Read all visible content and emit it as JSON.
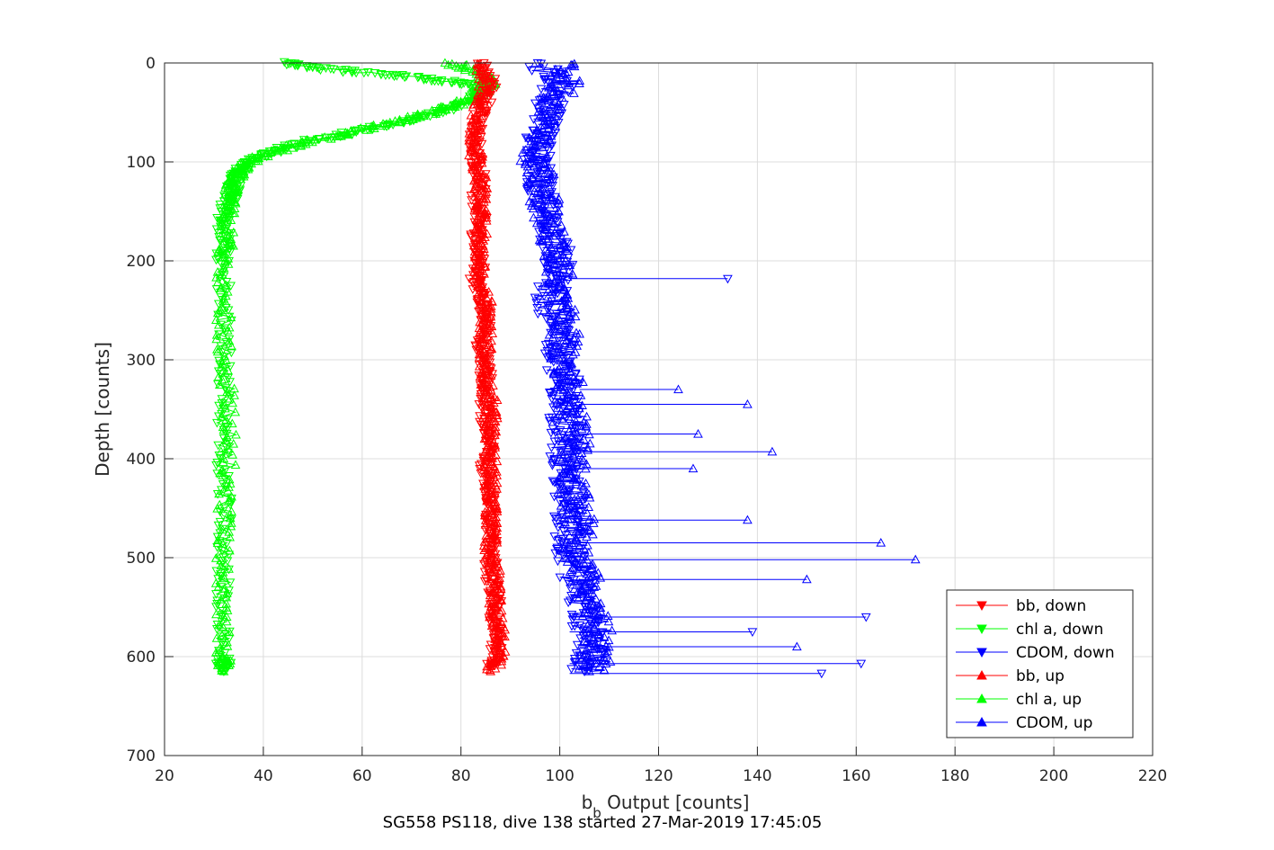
{
  "footer": "SG558 PS118, dive 138 started 27-Mar-2019 17:45:05",
  "chart_data": {
    "type": "line",
    "xlabel": "b",
    "xlabel_sub": "b",
    "xlabel_rest": " Output [counts]",
    "ylabel": "Depth [counts]",
    "xlim": [
      20,
      220
    ],
    "ylim": [
      0,
      700
    ],
    "y_reversed": true,
    "grid": true,
    "xticks": [
      20,
      40,
      60,
      80,
      100,
      120,
      140,
      160,
      180,
      200,
      220
    ],
    "yticks": [
      0,
      100,
      200,
      300,
      400,
      500,
      600,
      700
    ],
    "legend_position": "bottom-right",
    "series": [
      {
        "name": "bb, down",
        "color": "#ff0000",
        "marker": "triangle-down",
        "depth": [
          0,
          20,
          40,
          60,
          80,
          100,
          120,
          140,
          160,
          180,
          200,
          220,
          240,
          260,
          280,
          300,
          320,
          340,
          360,
          380,
          400,
          420,
          440,
          460,
          480,
          500,
          520,
          540,
          560,
          580,
          600,
          610
        ],
        "x": [
          84,
          86,
          85,
          83,
          83,
          83,
          84,
          83,
          84,
          83,
          84,
          83,
          84,
          85,
          84,
          85,
          85,
          85,
          85,
          86,
          85,
          85,
          86,
          86,
          86,
          86,
          86,
          87,
          87,
          87,
          87,
          86
        ]
      },
      {
        "name": "chl a, down",
        "color": "#00ff00",
        "marker": "triangle-down",
        "depth": [
          0,
          5,
          10,
          15,
          20,
          25,
          30,
          40,
          50,
          60,
          70,
          80,
          90,
          100,
          110,
          120,
          130,
          140,
          160,
          180,
          200,
          250,
          300,
          350,
          400,
          450,
          500,
          550,
          600,
          615
        ],
        "x": [
          44,
          50,
          62,
          72,
          80,
          85,
          84,
          82,
          75,
          68,
          58,
          48,
          42,
          37,
          35,
          34,
          34,
          33,
          32,
          32,
          32,
          32,
          32,
          32,
          32,
          32,
          32,
          32,
          32,
          32
        ]
      },
      {
        "name": "CDOM, down",
        "color": "#0000ff",
        "marker": "triangle-down",
        "depth": [
          0,
          20,
          40,
          60,
          80,
          100,
          120,
          140,
          160,
          180,
          200,
          220,
          240,
          260,
          280,
          300,
          320,
          340,
          360,
          380,
          400,
          420,
          440,
          460,
          480,
          500,
          520,
          540,
          560,
          580,
          600,
          615
        ],
        "x": [
          96,
          100,
          98,
          97,
          96,
          95,
          96,
          97,
          98,
          99,
          100,
          99,
          98,
          99,
          100,
          100,
          101,
          101,
          101,
          101,
          101,
          101,
          102,
          102,
          102,
          102,
          103,
          104,
          105,
          106,
          106,
          105
        ]
      },
      {
        "name": "bb, up",
        "color": "#ff0000",
        "marker": "triangle-up",
        "depth": [
          0,
          20,
          40,
          60,
          80,
          100,
          120,
          140,
          160,
          180,
          200,
          220,
          240,
          260,
          280,
          300,
          320,
          340,
          360,
          380,
          400,
          420,
          440,
          460,
          480,
          500,
          520,
          540,
          560,
          580,
          600,
          615
        ],
        "x": [
          84,
          85,
          84,
          83,
          83,
          83,
          84,
          84,
          84,
          84,
          84,
          84,
          85,
          85,
          85,
          85,
          85,
          86,
          86,
          86,
          86,
          86,
          86,
          86,
          86,
          86,
          87,
          87,
          87,
          88,
          88,
          86
        ]
      },
      {
        "name": "chl a, up",
        "color": "#00ff00",
        "marker": "triangle-up",
        "depth": [
          0,
          10,
          20,
          30,
          40,
          50,
          60,
          70,
          80,
          90,
          100,
          110,
          120,
          140,
          160,
          200,
          250,
          300,
          350,
          400,
          450,
          500,
          550,
          600,
          615
        ],
        "x": [
          78,
          84,
          86,
          84,
          80,
          74,
          66,
          58,
          49,
          42,
          37,
          35,
          34,
          33,
          33,
          32,
          32,
          32,
          33,
          33,
          32,
          32,
          32,
          32,
          32
        ]
      },
      {
        "name": "CDOM, up",
        "color": "#0000ff",
        "marker": "triangle-up",
        "depth": [
          0,
          20,
          40,
          60,
          80,
          100,
          120,
          140,
          160,
          180,
          200,
          220,
          240,
          260,
          280,
          300,
          320,
          340,
          360,
          380,
          400,
          420,
          440,
          460,
          480,
          500,
          520,
          540,
          560,
          580,
          600,
          615
        ],
        "x": [
          100,
          101,
          99,
          97,
          96,
          95,
          96,
          97,
          98,
          99,
          100,
          100,
          100,
          101,
          101,
          101,
          102,
          102,
          103,
          103,
          103,
          102,
          103,
          104,
          104,
          104,
          105,
          106,
          107,
          108,
          108,
          106
        ]
      }
    ],
    "spikes": [
      {
        "series": "CDOM, down",
        "depth": 218,
        "x": 134
      },
      {
        "series": "CDOM, down",
        "depth": 560,
        "x": 162
      },
      {
        "series": "CDOM, down",
        "depth": 575,
        "x": 139
      },
      {
        "series": "CDOM, down",
        "depth": 607,
        "x": 161
      },
      {
        "series": "CDOM, down",
        "depth": 617,
        "x": 153
      },
      {
        "series": "CDOM, up",
        "depth": 345,
        "x": 138
      },
      {
        "series": "CDOM, up",
        "depth": 393,
        "x": 143
      },
      {
        "series": "CDOM, up",
        "depth": 462,
        "x": 138
      },
      {
        "series": "CDOM, up",
        "depth": 485,
        "x": 165
      },
      {
        "series": "CDOM, up",
        "depth": 502,
        "x": 172
      },
      {
        "series": "CDOM, up",
        "depth": 522,
        "x": 150
      },
      {
        "series": "CDOM, up",
        "depth": 590,
        "x": 148
      },
      {
        "series": "CDOM, up",
        "depth": 330,
        "x": 124
      },
      {
        "series": "CDOM, up",
        "depth": 375,
        "x": 128
      },
      {
        "series": "CDOM, up",
        "depth": 410,
        "x": 127
      }
    ]
  }
}
